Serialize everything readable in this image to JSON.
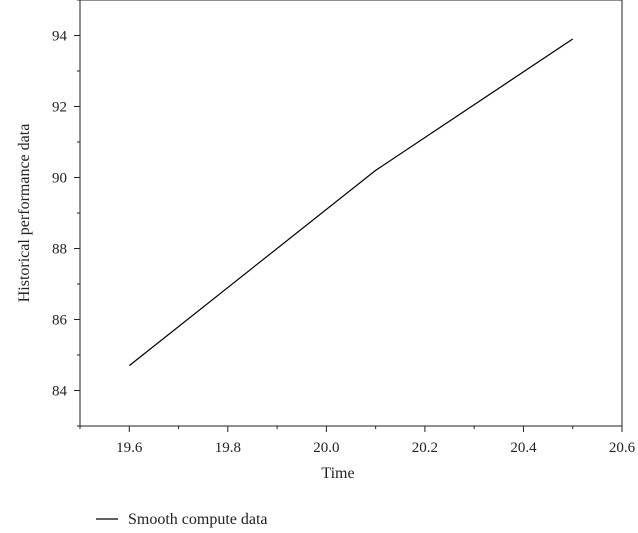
{
  "chart_data": {
    "type": "line",
    "title": "",
    "xlabel": "Time",
    "ylabel": "Historical performance data",
    "xlim": [
      19.5,
      20.6
    ],
    "ylim": [
      83,
      95
    ],
    "x_ticks": [
      19.6,
      19.8,
      20.0,
      20.2,
      20.4,
      20.6
    ],
    "x_tick_labels": [
      "19.6",
      "19.8",
      "20.0",
      "20.2",
      "20.4",
      "20.6"
    ],
    "y_ticks": [
      84,
      86,
      88,
      90,
      92,
      94
    ],
    "y_tick_labels": [
      "84",
      "86",
      "88",
      "90",
      "92",
      "94"
    ],
    "grid": false,
    "legend_position": "bottom-left, below plot",
    "series": [
      {
        "name": "Smooth compute data",
        "color": "#000000",
        "x": [
          19.6,
          20.1,
          20.5
        ],
        "y": [
          84.7,
          90.2,
          93.9
        ]
      }
    ]
  }
}
